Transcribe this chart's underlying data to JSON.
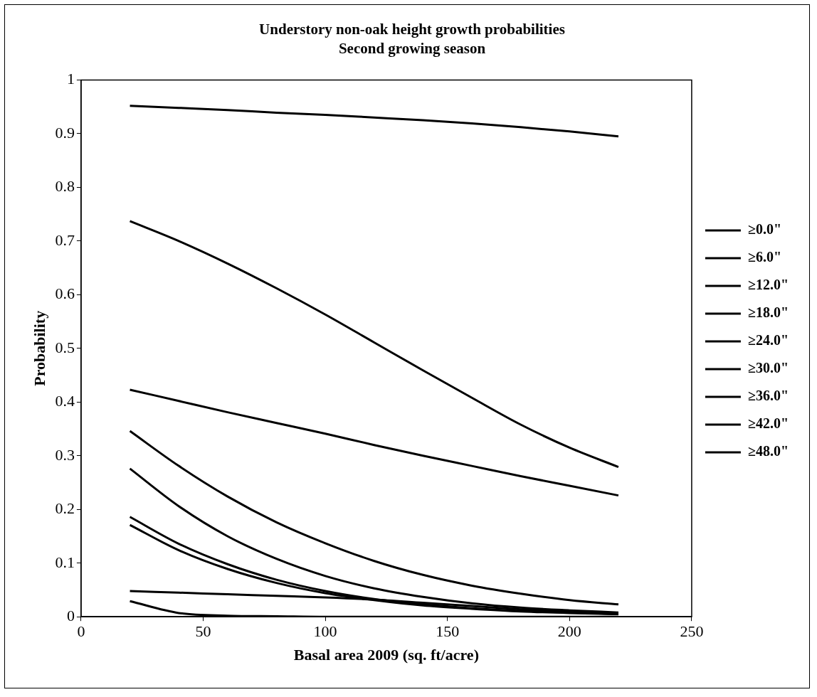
{
  "chart_data": {
    "type": "line",
    "title": "Understory non-oak height growth probabilities",
    "subtitle": "Second growing season",
    "xlabel": "Basal area 2009 (sq. ft/acre)",
    "ylabel": "Probability",
    "x": [
      20,
      40,
      60,
      80,
      100,
      120,
      140,
      160,
      180,
      200,
      220
    ],
    "xlim": [
      0,
      250
    ],
    "xticks": [
      0,
      50,
      100,
      150,
      200,
      250
    ],
    "ylim": [
      0,
      1
    ],
    "yticks": [
      0,
      0.1,
      0.2,
      0.3,
      0.4,
      0.5,
      0.6,
      0.7,
      0.8,
      0.9,
      1
    ],
    "grid": false,
    "legend": "right",
    "marker": "none",
    "line_style": "solid",
    "series": [
      {
        "name": "≥0.0\"",
        "color": "#000000",
        "values": [
          0.952,
          0.948,
          0.944,
          0.939,
          0.935,
          0.93,
          0.925,
          0.919,
          0.912,
          0.904,
          0.895
        ]
      },
      {
        "name": "≥6.0\"",
        "color": "#000000",
        "values": [
          0.737,
          0.7,
          0.658,
          0.612,
          0.563,
          0.511,
          0.459,
          0.408,
          0.358,
          0.315,
          0.279
        ]
      },
      {
        "name": "≥12.0\"",
        "color": "#000000",
        "values": [
          0.423,
          0.402,
          0.381,
          0.361,
          0.341,
          0.32,
          0.3,
          0.281,
          0.262,
          0.244,
          0.226
        ]
      },
      {
        "name": "≥18.0\"",
        "color": "#000000",
        "values": [
          0.346,
          0.281,
          0.224,
          0.176,
          0.137,
          0.104,
          0.078,
          0.058,
          0.043,
          0.031,
          0.023
        ]
      },
      {
        "name": "≥24.0\"",
        "color": "#000000",
        "values": [
          0.276,
          0.206,
          0.15,
          0.108,
          0.076,
          0.053,
          0.037,
          0.025,
          0.017,
          0.012,
          0.008
        ]
      },
      {
        "name": "≥30.0\"",
        "color": "#000000",
        "values": [
          0.186,
          0.136,
          0.098,
          0.069,
          0.048,
          0.033,
          0.023,
          0.016,
          0.011,
          0.008,
          0.005
        ]
      },
      {
        "name": "≥36.0\"",
        "color": "#000000",
        "values": [
          0.171,
          0.124,
          0.089,
          0.063,
          0.044,
          0.031,
          0.021,
          0.015,
          0.01,
          0.007,
          0.005
        ]
      },
      {
        "name": "≥42.0\"",
        "color": "#000000",
        "values": [
          0.048,
          0.045,
          0.042,
          0.039,
          0.036,
          0.032,
          0.026,
          0.02,
          0.014,
          0.009,
          0.005
        ]
      },
      {
        "name": "≥48.0\"",
        "color": "#000000",
        "values": [
          0.029,
          0.007,
          0.002,
          0.001,
          0,
          0,
          0,
          0,
          0,
          0,
          0
        ]
      }
    ]
  }
}
